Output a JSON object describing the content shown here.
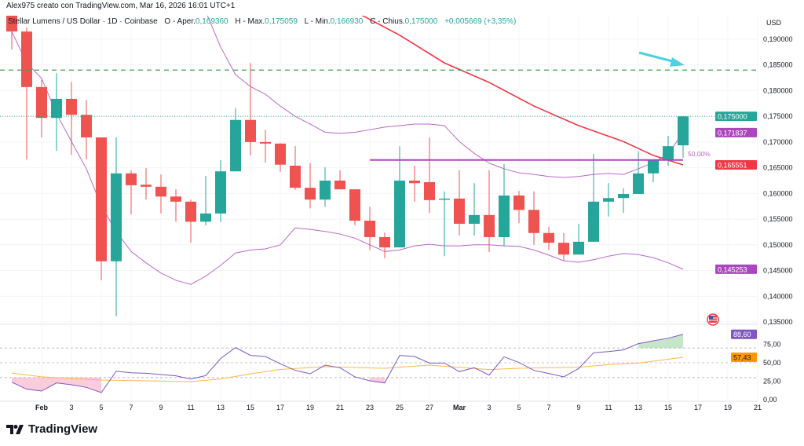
{
  "header": {
    "credit": "Alex975 creato con TradingView.com, Mar 16, 2026 16:01 UTC+1"
  },
  "legend": {
    "symbol": "Stellar Lumens / US Dollar · 1D · Coinbase",
    "open_label": "O - Aper.",
    "open": "0,169360",
    "high_label": "H - Max.",
    "high": "0,175059",
    "low_label": "L - Min.",
    "low": "0,166930",
    "close_label": "C - Chius.",
    "close": "0,175000",
    "change": "+0,005669 (+3,35%)"
  },
  "footer": {
    "logo_text": "TradingView"
  },
  "colors": {
    "up": "#26a69a",
    "down": "#ef5350",
    "band": "#ba68c8",
    "ma": "#f23645",
    "rsi": "#7e57c2",
    "rsi_ma": "#ffb74d",
    "resistance": "#43a047",
    "arrow": "#4dd0e1"
  },
  "chart_data": {
    "type": "candlestick",
    "currency_label": "USD",
    "price_ticks": [
      "0,190000",
      "0,185000",
      "0,180000",
      "0,175000",
      "0,170000",
      "0,165000",
      "0,160000",
      "0,155000",
      "0,150000",
      "0,145000",
      "0,140000",
      "0,135000"
    ],
    "price_tick_values": [
      0.19,
      0.185,
      0.18,
      0.175,
      0.17,
      0.165,
      0.16,
      0.155,
      0.15,
      0.145,
      0.14,
      0.135
    ],
    "x_ticks": [
      "Feb",
      "3",
      "5",
      "7",
      "9",
      "11",
      "13",
      "15",
      "17",
      "19",
      "21",
      "23",
      "25",
      "27",
      "Mar",
      "3",
      "5",
      "7",
      "9",
      "11",
      "13",
      "15",
      "17",
      "19",
      "21"
    ],
    "candles": [
      [
        "Jan 30",
        0.1961,
        0.1969,
        0.188,
        0.1915
      ],
      [
        "Jan 31",
        0.1915,
        0.1923,
        0.1666,
        0.1807
      ],
      [
        "Feb 1",
        0.1807,
        0.1821,
        0.1709,
        0.1747
      ],
      [
        "Feb 2",
        0.1747,
        0.1834,
        0.1683,
        0.1784
      ],
      [
        "Feb 3",
        0.1784,
        0.1817,
        0.1675,
        0.1753
      ],
      [
        "Feb 4",
        0.1753,
        0.1782,
        0.1666,
        0.1709
      ],
      [
        "Feb 5",
        0.1709,
        0.1709,
        0.1431,
        0.1468
      ],
      [
        "Feb 6",
        0.1468,
        0.1709,
        0.1361,
        0.1639
      ],
      [
        "Feb 7",
        0.1639,
        0.1645,
        0.1559,
        0.1616
      ],
      [
        "Feb 8",
        0.1617,
        0.1649,
        0.1588,
        0.1613
      ],
      [
        "Feb 9",
        0.1613,
        0.1637,
        0.1561,
        0.1594
      ],
      [
        "Feb 10",
        0.1594,
        0.1608,
        0.1545,
        0.1584
      ],
      [
        "Feb 11",
        0.1584,
        0.1588,
        0.1504,
        0.1545
      ],
      [
        "Feb 12",
        0.1545,
        0.1634,
        0.1538,
        0.1561
      ],
      [
        "Feb 13",
        0.1561,
        0.1665,
        0.1544,
        0.1643
      ],
      [
        "Feb 14",
        0.1643,
        0.1766,
        0.1643,
        0.1743
      ],
      [
        "Feb 15",
        0.1743,
        0.1854,
        0.1674,
        0.17
      ],
      [
        "Feb 16",
        0.17,
        0.1724,
        0.166,
        0.1697
      ],
      [
        "Feb 17",
        0.1697,
        0.1698,
        0.1642,
        0.1656
      ],
      [
        "Feb 18",
        0.1654,
        0.1692,
        0.1607,
        0.1611
      ],
      [
        "Feb 19",
        0.1611,
        0.1659,
        0.1571,
        0.1588
      ],
      [
        "Feb 20",
        0.1588,
        0.1651,
        0.1574,
        0.1625
      ],
      [
        "Feb 21",
        0.1625,
        0.1645,
        0.1608,
        0.1608
      ],
      [
        "Feb 22",
        0.1608,
        0.1608,
        0.1538,
        0.1547
      ],
      [
        "Feb 23",
        0.1547,
        0.1574,
        0.149,
        0.1515
      ],
      [
        "Feb 24",
        0.1515,
        0.1524,
        0.1474,
        0.1495
      ],
      [
        "Feb 25",
        0.1495,
        0.1692,
        0.1495,
        0.1625
      ],
      [
        "Feb 26",
        0.1625,
        0.1654,
        0.1584,
        0.162
      ],
      [
        "Feb 27",
        0.1622,
        0.1709,
        0.1562,
        0.1587
      ],
      [
        "Feb 28",
        0.1588,
        0.1604,
        0.1478,
        0.159
      ],
      [
        "Mar 1",
        0.159,
        0.1645,
        0.1518,
        0.1541
      ],
      [
        "Mar 2",
        0.1541,
        0.162,
        0.1518,
        0.1558
      ],
      [
        "Mar 3",
        0.1558,
        0.1645,
        0.1486,
        0.1515
      ],
      [
        "Mar 4",
        0.1515,
        0.1657,
        0.1498,
        0.1596
      ],
      [
        "Mar 5",
        0.1596,
        0.1605,
        0.1542,
        0.1568
      ],
      [
        "Mar 6",
        0.1568,
        0.1604,
        0.15,
        0.1523
      ],
      [
        "Mar 7",
        0.1523,
        0.1535,
        0.149,
        0.1504
      ],
      [
        "Mar 8",
        0.1504,
        0.1523,
        0.1469,
        0.1481
      ],
      [
        "Mar 9",
        0.1481,
        0.1541,
        0.1481,
        0.1506
      ],
      [
        "Mar 10",
        0.1506,
        0.1677,
        0.1506,
        0.1584
      ],
      [
        "Mar 11",
        0.1584,
        0.162,
        0.1555,
        0.1591
      ],
      [
        "Mar 12",
        0.1591,
        0.161,
        0.1562,
        0.1599
      ],
      [
        "Mar 13",
        0.1599,
        0.1682,
        0.1599,
        0.1639
      ],
      [
        "Mar 14",
        0.1639,
        0.1665,
        0.1622,
        0.1665
      ],
      [
        "Mar 15",
        0.1665,
        0.1712,
        0.1654,
        0.1692
      ],
      [
        "Mar 16",
        0.16936,
        0.175059,
        0.16693,
        0.175
      ]
    ],
    "upper_band": [
      [
        "Feb 12",
        0.1954
      ],
      [
        "Feb 13",
        0.1885
      ],
      [
        "Feb 14",
        0.1831
      ],
      [
        "Feb 15",
        0.1808
      ],
      [
        "Feb 16",
        0.1793
      ],
      [
        "Feb 17",
        0.177
      ],
      [
        "Feb 18",
        0.175
      ],
      [
        "Feb 19",
        0.1735
      ],
      [
        "Feb 20",
        0.1719
      ],
      [
        "Feb 21",
        0.1717
      ],
      [
        "Feb 22",
        0.1719
      ],
      [
        "Feb 23",
        0.1724
      ],
      [
        "Feb 24",
        0.1729
      ],
      [
        "Feb 25",
        0.1732
      ],
      [
        "Feb 26",
        0.1735
      ],
      [
        "Feb 27",
        0.1735
      ],
      [
        "Feb 28",
        0.1732
      ],
      [
        "Mar 1",
        0.1701
      ],
      [
        "Mar 2",
        0.1678
      ],
      [
        "Mar 3",
        0.1659
      ],
      [
        "Mar 4",
        0.1648
      ],
      [
        "Mar 5",
        0.164
      ],
      [
        "Mar 6",
        0.1637
      ],
      [
        "Mar 7",
        0.1633
      ],
      [
        "Mar 8",
        0.1631
      ],
      [
        "Mar 9",
        0.1633
      ],
      [
        "Mar 10",
        0.1637
      ],
      [
        "Mar 11",
        0.1639
      ],
      [
        "Mar 12",
        0.1637
      ],
      [
        "Mar 13",
        0.1648
      ],
      [
        "Mar 14",
        0.166
      ],
      [
        "Mar 15",
        0.1677
      ],
      [
        "Mar 16",
        0.171837
      ]
    ],
    "lower_band": [
      [
        "Jan 30",
        0.1915
      ],
      [
        "Jan 31",
        0.1854
      ],
      [
        "Feb 1",
        0.1824
      ],
      [
        "Feb 2",
        0.1755
      ],
      [
        "Feb 3",
        0.1701
      ],
      [
        "Feb 4",
        0.1648
      ],
      [
        "Feb 5",
        0.1576
      ],
      [
        "Feb 6",
        0.1526
      ],
      [
        "Feb 7",
        0.1487
      ],
      [
        "Feb 8",
        0.1465
      ],
      [
        "Feb 9",
        0.1445
      ],
      [
        "Feb 10",
        0.1431
      ],
      [
        "Feb 11",
        0.1423
      ],
      [
        "Feb 12",
        0.1439
      ],
      [
        "Feb 13",
        0.146
      ],
      [
        "Feb 14",
        0.1484
      ],
      [
        "Feb 15",
        0.149
      ],
      [
        "Feb 16",
        0.1492
      ],
      [
        "Feb 17",
        0.15
      ],
      [
        "Feb 18",
        0.1533
      ],
      [
        "Feb 19",
        0.153
      ],
      [
        "Feb 20",
        0.1526
      ],
      [
        "Feb 21",
        0.1521
      ],
      [
        "Feb 22",
        0.1513
      ],
      [
        "Feb 23",
        0.15
      ],
      [
        "Feb 24",
        0.1487
      ],
      [
        "Feb 25",
        0.149
      ],
      [
        "Feb 26",
        0.1498
      ],
      [
        "Feb 27",
        0.1501
      ],
      [
        "Feb 28",
        0.1498
      ],
      [
        "Mar 1",
        0.1498
      ],
      [
        "Mar 2",
        0.15
      ],
      [
        "Mar 3",
        0.15
      ],
      [
        "Mar 4",
        0.1498
      ],
      [
        "Mar 5",
        0.1497
      ],
      [
        "Mar 6",
        0.149
      ],
      [
        "Mar 7",
        0.148
      ],
      [
        "Mar 8",
        0.1469
      ],
      [
        "Mar 9",
        0.1466
      ],
      [
        "Mar 10",
        0.1471
      ],
      [
        "Mar 11",
        0.1478
      ],
      [
        "Mar 12",
        0.1483
      ],
      [
        "Mar 13",
        0.1481
      ],
      [
        "Mar 14",
        0.1475
      ],
      [
        "Mar 15",
        0.1465
      ],
      [
        "Mar 16",
        0.145253
      ]
    ],
    "moving_average": [
      [
        "Feb 21",
        0.197
      ],
      [
        "Feb 22",
        0.1954
      ],
      [
        "Feb 25",
        0.1908
      ],
      [
        "Feb 28",
        0.1854
      ],
      [
        "Mar 3",
        0.1816
      ],
      [
        "Mar 6",
        0.177
      ],
      [
        "Mar 9",
        0.1732
      ],
      [
        "Mar 12",
        0.1701
      ],
      [
        "Mar 14",
        0.1674
      ],
      [
        "Mar 16",
        0.165551
      ]
    ],
    "resistance_level": 0.184,
    "fib_level": {
      "value": 0.1665,
      "label": "50,00%",
      "from": "Feb 23",
      "to": "Mar 16"
    },
    "last_price_line": 0.175,
    "price_labels": {
      "last": "0,175000",
      "upper_band": "0,171837",
      "ma": "0,165551",
      "lower_band": "0,145253"
    },
    "rsi": {
      "ticks": [
        "75,00",
        "50,00",
        "25,00",
        "0,00"
      ],
      "tick_values": [
        75,
        50,
        25,
        0
      ],
      "levels": [
        70,
        50,
        30
      ],
      "values": [
        23.7,
        14.2,
        11.7,
        22.7,
        20.2,
        16.7,
        9.6,
        38.6,
        36.5,
        35.8,
        34,
        32.3,
        28,
        32.6,
        55.7,
        70.6,
        60,
        58.5,
        48.6,
        39.7,
        35.1,
        46.8,
        43.3,
        30.9,
        25.5,
        22.7,
        60,
        58.5,
        49.6,
        49.6,
        38,
        43.3,
        33.3,
        58.2,
        50.3,
        39.7,
        35.5,
        30.9,
        42.2,
        63.5,
        65.2,
        67.4,
        75.9,
        79.8,
        83.3,
        88.6
      ],
      "ma": [
        [
          "Jan 30",
          36
        ],
        [
          "Feb 1",
          31
        ],
        [
          "Feb 5",
          26.6
        ],
        [
          "Feb 11",
          24.5
        ],
        [
          "Feb 13",
          28
        ],
        [
          "Feb 15",
          35
        ],
        [
          "Feb 17",
          41
        ],
        [
          "Feb 20",
          44.7
        ],
        [
          "Feb 23",
          43
        ],
        [
          "Feb 24",
          42.5
        ],
        [
          "Feb 27",
          46.8
        ],
        [
          "Mar 3",
          40.8
        ],
        [
          "Mar 5",
          42.6
        ],
        [
          "Mar 9",
          43.9
        ],
        [
          "Mar 11",
          47.5
        ],
        [
          "Mar 13",
          49.6
        ],
        [
          "Mar 16",
          57.43
        ]
      ],
      "value_label": "88,60",
      "ma_label": "57,43"
    }
  }
}
